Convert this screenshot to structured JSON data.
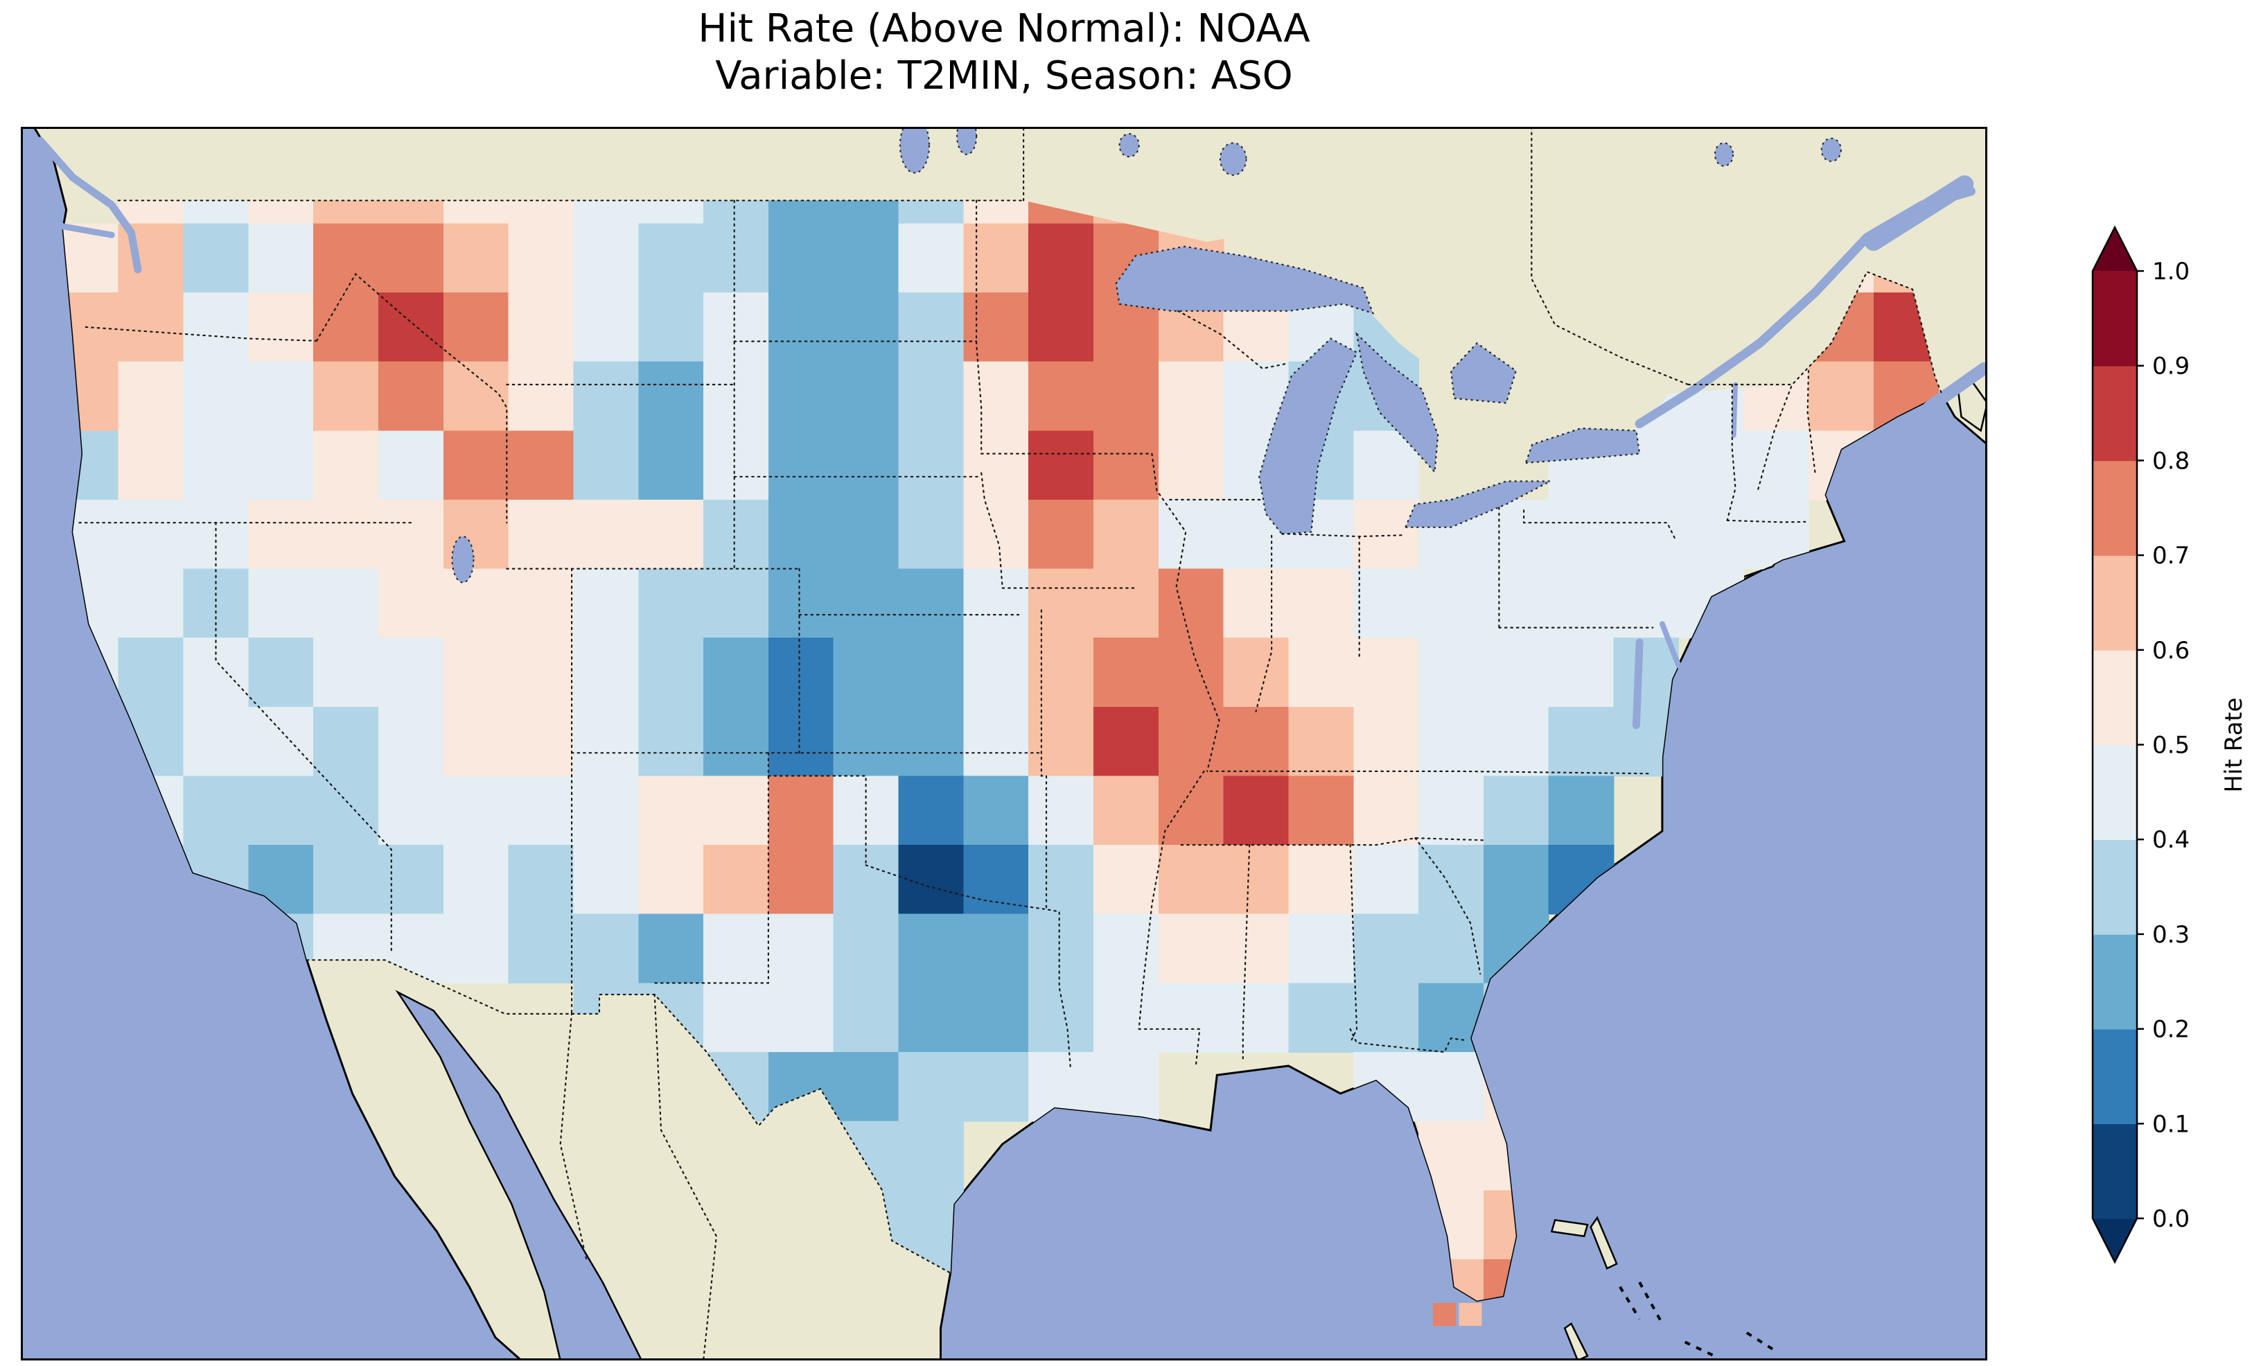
{
  "figure": {
    "title_line1": "Hit Rate (Above Normal): NOAA",
    "title_line2": "Variable: T2MIN, Season: ASO"
  },
  "colorbar": {
    "label": "Hit Rate",
    "tick_labels": [
      "0.0",
      "0.1",
      "0.2",
      "0.3",
      "0.4",
      "0.5",
      "0.6",
      "0.7",
      "0.8",
      "0.9",
      "1.0"
    ],
    "extend": "both",
    "under_color": "#053061",
    "over_color": "#67001f",
    "bin_colors_low_to_high": [
      "#0e4278",
      "#327cb7",
      "#6aacd0",
      "#b1d5e7",
      "#e4eef3",
      "#fae9df",
      "#f8c0a4",
      "#e58267",
      "#c43c3c",
      "#8c0c25"
    ]
  },
  "map_colors": {
    "ocean": "#93a8d7",
    "land": "#ebe8d1",
    "coastline": "#000000",
    "border_line": "#1a1a1a"
  },
  "chart_data": {
    "type": "heatmap",
    "title": "Hit Rate (Above Normal): NOAA",
    "subtitle": "Variable: T2MIN, Season: ASO",
    "metric": "Hit Rate (Above Normal)",
    "source": "NOAA",
    "variable": "T2MIN",
    "season": "ASO",
    "legend_label": "Hit Rate",
    "colorbar_range": [
      0.0,
      1.0
    ],
    "colorbar_bins": [
      0.0,
      0.1,
      0.2,
      0.3,
      0.4,
      0.5,
      0.6,
      0.7,
      0.8,
      0.9,
      1.0
    ],
    "extent": {
      "lon_min": -126.0,
      "lon_max": -65.5,
      "lat_min": 23.8,
      "lat_max": 50.6
    },
    "grid": {
      "lon0": -125,
      "dlon": 2,
      "lat0": 50,
      "dlat": 1.5,
      "ncols": 30,
      "nrows": 17,
      "values": [
        [
          null,
          0.55,
          0.45,
          0.55,
          0.65,
          0.65,
          0.55,
          0.55,
          0.45,
          0.45,
          0.35,
          0.25,
          0.25,
          0.35,
          0.55,
          0.75,
          0.65,
          0.55,
          null,
          null,
          null,
          null,
          null,
          null,
          null,
          null,
          null,
          null,
          null,
          null
        ],
        [
          0.55,
          0.65,
          0.35,
          0.45,
          0.75,
          0.75,
          0.65,
          0.55,
          0.45,
          0.35,
          0.35,
          0.25,
          0.25,
          0.45,
          0.65,
          0.85,
          0.75,
          0.65,
          null,
          null,
          null,
          null,
          null,
          null,
          null,
          null,
          null,
          0.55,
          0.65,
          null
        ],
        [
          0.65,
          0.65,
          0.45,
          0.55,
          0.75,
          0.85,
          0.75,
          0.55,
          0.45,
          0.35,
          0.45,
          0.25,
          0.25,
          0.35,
          0.75,
          0.85,
          0.75,
          0.65,
          0.55,
          0.45,
          0.35,
          null,
          null,
          null,
          null,
          null,
          null,
          0.75,
          0.85,
          null
        ],
        [
          0.65,
          0.55,
          0.45,
          0.45,
          0.65,
          0.75,
          0.65,
          0.55,
          0.35,
          0.25,
          0.45,
          0.25,
          0.25,
          0.35,
          0.55,
          0.75,
          0.75,
          0.55,
          0.45,
          0.35,
          0.35,
          null,
          null,
          null,
          0.45,
          0.45,
          0.55,
          0.65,
          0.75,
          null
        ],
        [
          0.35,
          0.55,
          0.45,
          0.45,
          0.55,
          0.45,
          0.75,
          0.75,
          0.35,
          0.25,
          0.45,
          0.25,
          0.25,
          0.35,
          0.55,
          0.85,
          0.75,
          0.55,
          0.45,
          0.35,
          0.45,
          null,
          null,
          0.45,
          0.45,
          0.45,
          0.45,
          0.55,
          null,
          null
        ],
        [
          0.45,
          0.45,
          0.45,
          0.55,
          0.55,
          0.55,
          0.65,
          0.55,
          0.55,
          0.55,
          0.35,
          0.25,
          0.25,
          0.35,
          0.55,
          0.75,
          0.65,
          0.45,
          0.45,
          0.45,
          0.55,
          0.45,
          0.45,
          0.45,
          0.45,
          0.45,
          0.45,
          null,
          null,
          null
        ],
        [
          0.45,
          0.45,
          0.35,
          0.45,
          0.45,
          0.55,
          0.55,
          0.55,
          0.45,
          0.35,
          0.35,
          0.25,
          0.25,
          0.25,
          0.45,
          0.65,
          0.65,
          0.75,
          0.55,
          0.55,
          0.45,
          0.45,
          0.45,
          0.45,
          0.45,
          0.45,
          null,
          null,
          null,
          null
        ],
        [
          0.45,
          0.35,
          0.45,
          0.35,
          0.45,
          0.45,
          0.55,
          0.55,
          0.45,
          0.35,
          0.25,
          0.15,
          0.25,
          0.25,
          0.45,
          0.65,
          0.75,
          0.75,
          0.65,
          0.55,
          0.55,
          0.45,
          0.45,
          0.45,
          0.35,
          null,
          null,
          null,
          null,
          null
        ],
        [
          null,
          0.35,
          0.45,
          0.45,
          0.35,
          0.45,
          0.55,
          0.55,
          0.45,
          0.35,
          0.25,
          0.15,
          0.25,
          0.25,
          0.45,
          0.65,
          0.85,
          0.75,
          0.75,
          0.65,
          0.55,
          0.45,
          0.45,
          0.35,
          0.35,
          null,
          null,
          null,
          null,
          null
        ],
        [
          null,
          0.45,
          0.35,
          0.35,
          0.35,
          0.45,
          0.45,
          0.45,
          0.45,
          0.55,
          0.55,
          0.75,
          0.45,
          0.15,
          0.25,
          0.45,
          0.65,
          0.75,
          0.85,
          0.75,
          0.55,
          0.45,
          0.35,
          0.25,
          null,
          null,
          null,
          null,
          null,
          null
        ],
        [
          null,
          0.35,
          0.35,
          0.25,
          0.35,
          0.35,
          0.45,
          0.35,
          0.45,
          0.55,
          0.65,
          0.75,
          0.35,
          0.05,
          0.15,
          0.35,
          0.55,
          0.65,
          0.65,
          0.55,
          0.45,
          0.35,
          0.25,
          0.15,
          null,
          null,
          null,
          null,
          null,
          null
        ],
        [
          null,
          null,
          null,
          0.35,
          0.45,
          0.45,
          0.45,
          0.35,
          0.35,
          0.25,
          0.45,
          0.45,
          0.35,
          0.25,
          0.25,
          0.35,
          0.45,
          0.55,
          0.55,
          0.45,
          0.35,
          0.35,
          0.25,
          null,
          null,
          null,
          null,
          null,
          null,
          null
        ],
        [
          null,
          null,
          null,
          null,
          null,
          null,
          null,
          null,
          0.35,
          0.35,
          0.45,
          0.45,
          0.35,
          0.25,
          0.25,
          0.35,
          0.45,
          0.45,
          0.45,
          0.35,
          0.35,
          0.25,
          0.35,
          null,
          null,
          null,
          null,
          null,
          null,
          null
        ],
        [
          null,
          null,
          null,
          null,
          null,
          null,
          null,
          null,
          null,
          null,
          0.35,
          0.25,
          0.25,
          0.35,
          0.35,
          0.45,
          0.45,
          null,
          null,
          null,
          0.45,
          0.45,
          0.55,
          null,
          null,
          null,
          null,
          null,
          null,
          null
        ],
        [
          null,
          null,
          null,
          null,
          null,
          null,
          null,
          null,
          null,
          null,
          null,
          0.25,
          0.35,
          0.35,
          null,
          null,
          null,
          null,
          null,
          null,
          null,
          0.55,
          0.55,
          null,
          null,
          null,
          null,
          null,
          null,
          null
        ],
        [
          null,
          null,
          null,
          null,
          null,
          null,
          null,
          null,
          null,
          null,
          null,
          null,
          0.35,
          0.35,
          null,
          null,
          null,
          null,
          null,
          null,
          null,
          0.55,
          0.65,
          null,
          null,
          null,
          null,
          null,
          null,
          null
        ],
        [
          null,
          null,
          null,
          null,
          null,
          null,
          null,
          null,
          null,
          null,
          null,
          null,
          null,
          0.35,
          null,
          null,
          null,
          null,
          null,
          null,
          null,
          0.65,
          0.75,
          null,
          null,
          null,
          null,
          null,
          null,
          null
        ]
      ]
    },
    "extra_cells": [
      {
        "lon": -82.55,
        "lat": 25.05,
        "dlon": 0.7,
        "dlat": 0.5,
        "value": 0.75
      },
      {
        "lon": -81.75,
        "lat": 25.05,
        "dlon": 0.7,
        "dlat": 0.5,
        "value": 0.65
      }
    ]
  }
}
